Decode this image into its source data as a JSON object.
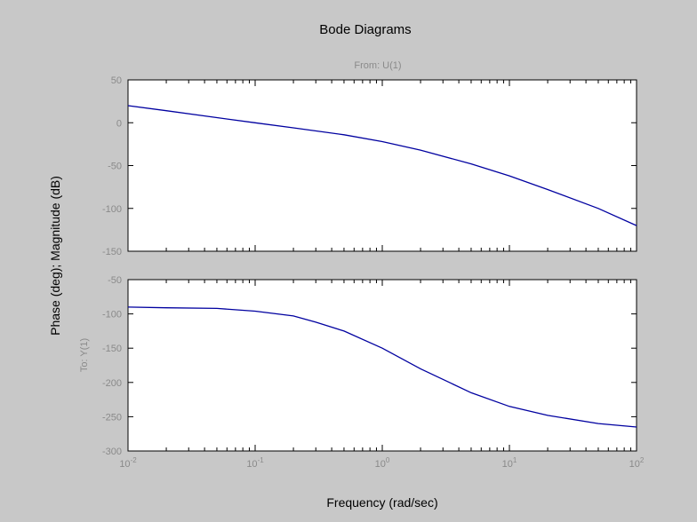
{
  "chart_data": {
    "type": "line",
    "title": "Bode Diagrams",
    "subtitle": "From: U(1)",
    "ylabel": "Phase (deg); Magnitude (dB)",
    "xlabel": "Frequency (rad/sec)",
    "output_label": "To: Y(1)",
    "xscale": "log",
    "xlim": [
      0.01,
      100
    ],
    "x_tick_labels": [
      {
        "base": "10",
        "exp": "-2"
      },
      {
        "base": "10",
        "exp": "-1"
      },
      {
        "base": "10",
        "exp": "0"
      },
      {
        "base": "10",
        "exp": "1"
      },
      {
        "base": "10",
        "exp": "2"
      }
    ],
    "line_color": "#0000a0",
    "panels": [
      {
        "quantity": "magnitude",
        "ylim": [
          -150,
          50
        ],
        "y_ticks": [
          "50",
          "0",
          "-50",
          "-100",
          "-150"
        ],
        "x": [
          0.01,
          0.02,
          0.05,
          0.1,
          0.2,
          0.5,
          1,
          2,
          5,
          10,
          20,
          50,
          100
        ],
        "y": [
          20,
          14,
          6,
          0,
          -6,
          -14,
          -22,
          -32,
          -48,
          -62,
          -78,
          -100,
          -120
        ]
      },
      {
        "quantity": "phase",
        "ylim": [
          -300,
          -50
        ],
        "y_ticks": [
          "-50",
          "-100",
          "-150",
          "-200",
          "-250",
          "-300"
        ],
        "x": [
          0.01,
          0.02,
          0.05,
          0.1,
          0.2,
          0.3,
          0.5,
          1,
          2,
          5,
          10,
          20,
          50,
          100
        ],
        "y": [
          -90,
          -91,
          -92,
          -96,
          -103,
          -112,
          -125,
          -150,
          -180,
          -215,
          -235,
          -248,
          -260,
          -265
        ]
      }
    ]
  },
  "colors": {
    "figure_background": "#c8c8c8",
    "axes_background": "#ffffff",
    "muted_text": "#8a8a8a"
  }
}
